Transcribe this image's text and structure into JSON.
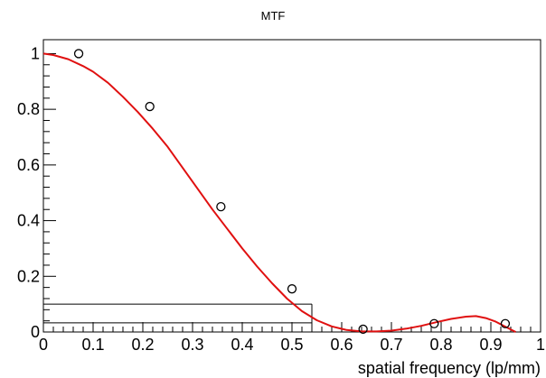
{
  "chart_data": {
    "type": "scatter",
    "title": "MTF",
    "xlabel": "spatial frequency (lp/mm)",
    "ylabel": "",
    "xlim": [
      0,
      1
    ],
    "ylim": [
      0,
      1.05
    ],
    "x_ticks": [
      "0",
      "0.1",
      "0.2",
      "0.3",
      "0.4",
      "0.5",
      "0.6",
      "0.7",
      "0.8",
      "0.9",
      "1"
    ],
    "y_ticks": [
      "0",
      "0.2",
      "0.4",
      "0.6",
      "0.8",
      "1"
    ],
    "grid": false,
    "legend": "none",
    "series": [
      {
        "type": "scatter",
        "marker": "open-circle",
        "x": [
          0.071,
          0.214,
          0.357,
          0.5,
          0.643,
          0.786,
          0.929
        ],
        "y": [
          1.0,
          0.81,
          0.45,
          0.155,
          0.01,
          0.03,
          0.03
        ]
      },
      {
        "type": "line",
        "color": "#e01010",
        "x": [
          0.0,
          0.02,
          0.05,
          0.08,
          0.1,
          0.13,
          0.16,
          0.19,
          0.22,
          0.25,
          0.28,
          0.31,
          0.34,
          0.37,
          0.4,
          0.43,
          0.46,
          0.49,
          0.52,
          0.55,
          0.58,
          0.61,
          0.64,
          0.67,
          0.7,
          0.73,
          0.76,
          0.79,
          0.82,
          0.85,
          0.87,
          0.89,
          0.91,
          0.93,
          0.95
        ],
        "y": [
          1.0,
          0.995,
          0.98,
          0.955,
          0.935,
          0.895,
          0.845,
          0.79,
          0.73,
          0.665,
          0.59,
          0.515,
          0.44,
          0.37,
          0.3,
          0.235,
          0.175,
          0.12,
          0.075,
          0.042,
          0.02,
          0.007,
          0.002,
          0.002,
          0.005,
          0.012,
          0.022,
          0.035,
          0.047,
          0.055,
          0.057,
          0.05,
          0.037,
          0.018,
          0.0
        ]
      }
    ],
    "annotations": [
      {
        "type": "horizontal",
        "y": 0.1,
        "x_end": 0.54
      },
      {
        "type": "horizontal",
        "y": 0.033,
        "x_end": 0.54
      },
      {
        "type": "vertical",
        "x": 0.54,
        "y_end": 0.1
      }
    ]
  }
}
